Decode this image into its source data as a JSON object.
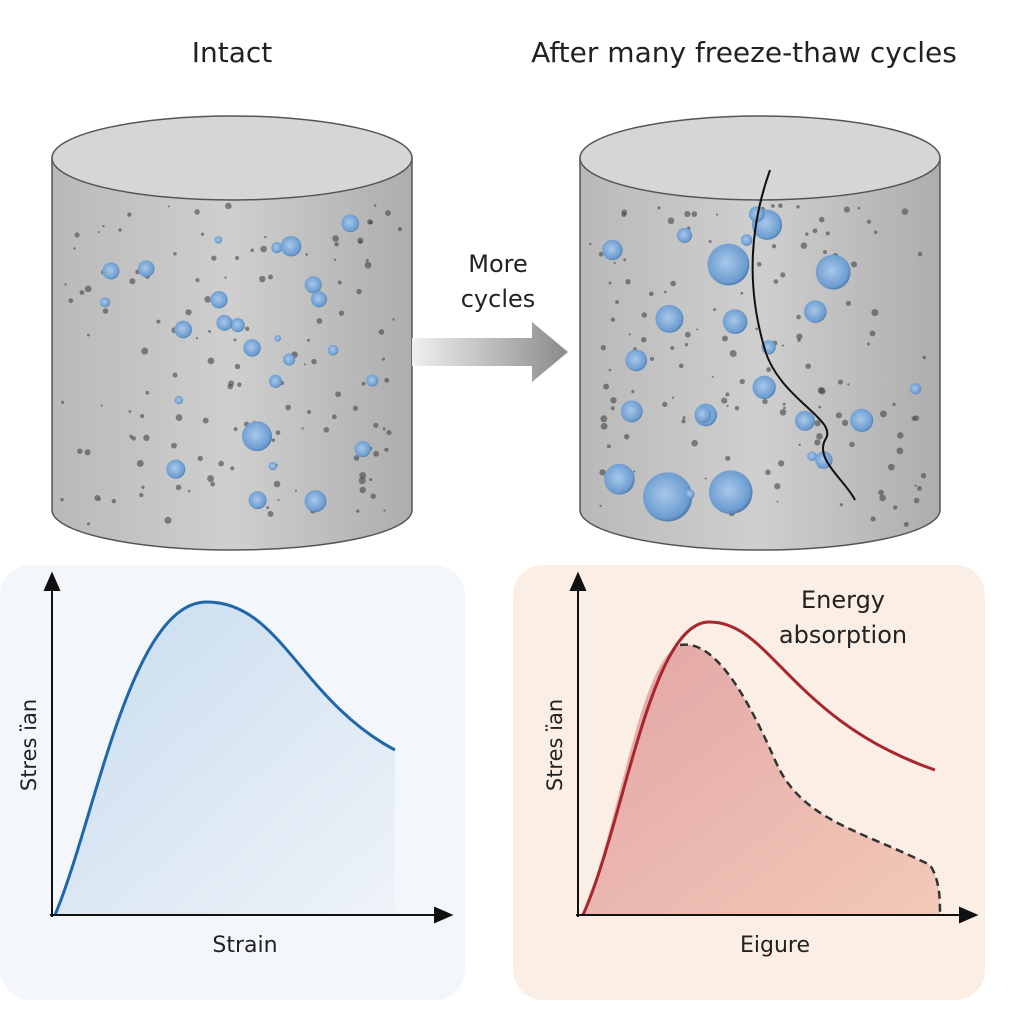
{
  "panels": {
    "left": {
      "title": "Intact"
    },
    "right": {
      "title": "After many freeze-thaw cycles"
    }
  },
  "arrow": {
    "label": [
      "More",
      "cycles"
    ]
  },
  "graphs": [
    {
      "y_label": "Stres ïan",
      "x_label": "Strain"
    },
    {
      "y_label": "Stres ïan",
      "x_label": "Eigure",
      "annotation": [
        "Energy",
        "absorption"
      ]
    }
  ]
}
